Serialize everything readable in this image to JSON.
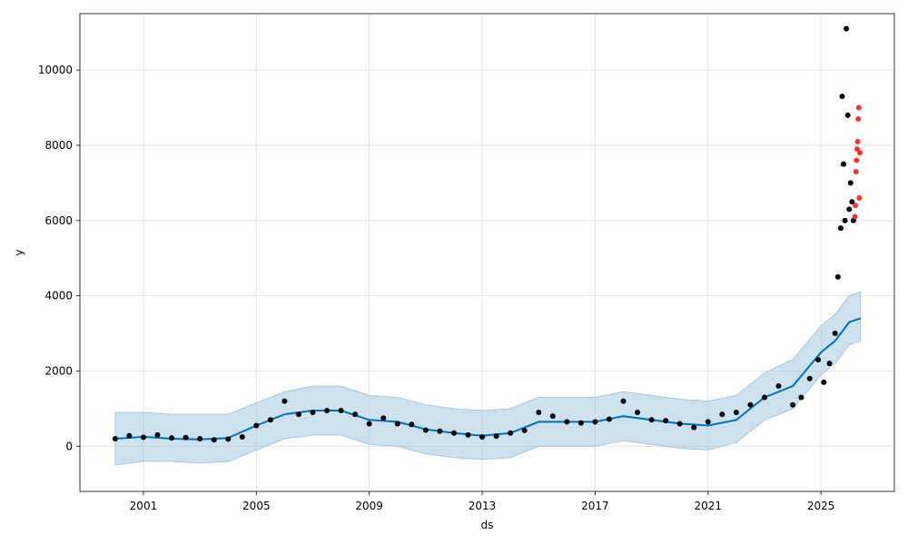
{
  "chart_data": {
    "type": "scatter",
    "title": "",
    "xlabel": "ds",
    "ylabel": "y",
    "x_ticks": [
      "2001",
      "2005",
      "2009",
      "2013",
      "2017",
      "2021",
      "2025"
    ],
    "y_ticks": [
      "0",
      "2000",
      "4000",
      "6000",
      "8000",
      "10000"
    ],
    "xlim": [
      1998.75,
      2027.6
    ],
    "ylim": [
      -1200,
      11500
    ],
    "grid": true,
    "legend": "none",
    "colors": {
      "observed": "#000000",
      "highlighted": "#ff3333",
      "forecast": "#0072b2",
      "band": "#a6c8e0"
    },
    "series": [
      {
        "role": "observed",
        "x": [
          2000.0,
          2000.5,
          2001.0,
          2001.5,
          2002.0,
          2002.5,
          2003.0,
          2003.5,
          2004.0,
          2004.5,
          2005.0,
          2005.5,
          2006.0,
          2006.5,
          2007.0,
          2007.5,
          2008.0,
          2008.5,
          2009.0,
          2009.5,
          2010.0,
          2010.5,
          2011.0,
          2011.5,
          2012.0,
          2012.5,
          2013.0,
          2013.5,
          2014.0,
          2014.5,
          2015.0,
          2015.5,
          2016.0,
          2016.5,
          2017.0,
          2017.5,
          2018.0,
          2018.5,
          2019.0,
          2019.5,
          2020.0,
          2020.5,
          2021.0,
          2021.5,
          2022.0,
          2022.5,
          2023.0,
          2023.5,
          2024.0,
          2024.3,
          2024.6,
          2024.9,
          2025.1,
          2025.3,
          2025.5,
          2025.6,
          2025.7,
          2025.75,
          2025.8,
          2025.85,
          2025.9,
          2025.95,
          2026.0,
          2026.05,
          2026.1,
          2026.15
        ],
        "y": [
          200,
          280,
          240,
          300,
          220,
          230,
          200,
          170,
          190,
          250,
          550,
          700,
          1200,
          850,
          900,
          950,
          950,
          850,
          600,
          750,
          600,
          580,
          430,
          400,
          350,
          300,
          250,
          270,
          350,
          420,
          900,
          800,
          650,
          620,
          650,
          720,
          1200,
          900,
          700,
          680,
          600,
          500,
          650,
          850,
          900,
          1100,
          1300,
          1600,
          1100,
          1300,
          1800,
          2300,
          1700,
          2200,
          3000,
          4500,
          5800,
          9300,
          7500,
          6000,
          11100,
          8800,
          6300,
          7000,
          6500,
          6000
        ]
      },
      {
        "role": "highlighted",
        "x": [
          2026.2,
          2026.22,
          2026.24,
          2026.26,
          2026.28,
          2026.3,
          2026.32,
          2026.34,
          2026.36,
          2026.38
        ],
        "y": [
          6100,
          6400,
          7300,
          7600,
          7900,
          8100,
          8700,
          9000,
          6600,
          7800
        ]
      },
      {
        "role": "forecast",
        "x": [
          2000.0,
          2001.0,
          2002.0,
          2003.0,
          2004.0,
          2005.0,
          2006.0,
          2007.0,
          2008.0,
          2009.0,
          2010.0,
          2011.0,
          2012.0,
          2013.0,
          2014.0,
          2015.0,
          2016.0,
          2017.0,
          2018.0,
          2019.0,
          2020.0,
          2021.0,
          2022.0,
          2022.5,
          2023.0,
          2024.0,
          2025.0,
          2025.5,
          2026.0,
          2026.4
        ],
        "y": [
          200,
          250,
          200,
          180,
          220,
          550,
          850,
          950,
          950,
          700,
          650,
          450,
          350,
          280,
          350,
          650,
          650,
          650,
          800,
          700,
          600,
          550,
          700,
          1000,
          1300,
          1600,
          2500,
          2800,
          3300,
          3400
        ],
        "band_lower": [
          -500,
          -400,
          -400,
          -450,
          -400,
          -100,
          200,
          300,
          300,
          50,
          0,
          -200,
          -300,
          -350,
          -300,
          0,
          0,
          0,
          150,
          50,
          -50,
          -100,
          100,
          400,
          700,
          1000,
          1900,
          2200,
          2700,
          2800
        ],
        "band_upper": [
          900,
          900,
          850,
          850,
          850,
          1150,
          1450,
          1600,
          1600,
          1350,
          1300,
          1100,
          1000,
          950,
          1000,
          1300,
          1300,
          1300,
          1450,
          1350,
          1250,
          1200,
          1350,
          1650,
          1950,
          2300,
          3200,
          3500,
          4000,
          4100
        ]
      }
    ]
  }
}
